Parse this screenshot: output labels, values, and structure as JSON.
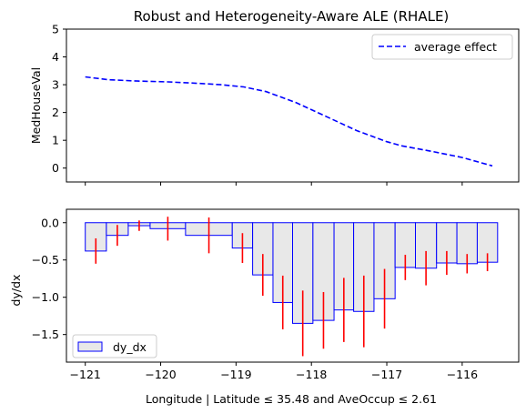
{
  "chart_data": [
    {
      "type": "line",
      "title": "Robust and Heterogeneity-Aware ALE (RHALE)",
      "xlabel": "",
      "ylabel": "MedHouseVal",
      "xlim": [
        -121.25,
        -115.25
      ],
      "ylim": [
        -0.5,
        5.0
      ],
      "yticks": [
        0,
        1,
        2,
        3,
        4,
        5
      ],
      "grid": false,
      "legend_position": "top-right",
      "series": [
        {
          "name": "average effect",
          "color": "#0000ff",
          "linestyle": "dashed",
          "x": [
            -121.0,
            -120.7,
            -120.3,
            -119.9,
            -119.5,
            -119.2,
            -118.9,
            -118.6,
            -118.2,
            -117.8,
            -117.4,
            -117.0,
            -116.8,
            -116.4,
            -116.0,
            -115.6
          ],
          "y": [
            3.28,
            3.18,
            3.13,
            3.1,
            3.05,
            3.0,
            2.92,
            2.75,
            2.35,
            1.85,
            1.35,
            0.95,
            0.8,
            0.6,
            0.38,
            0.08
          ]
        }
      ]
    },
    {
      "type": "bar",
      "xlabel": "Longitude | Latitude ≤ 35.48 and AveOccup ≤ 2.61",
      "ylabel": "dy/dx",
      "xlim": [
        -121.25,
        -115.25
      ],
      "ylim": [
        -1.87,
        0.18
      ],
      "xticks": [
        -121,
        -120,
        -119,
        -118,
        -117,
        -116
      ],
      "xtick_labels": [
        "−121",
        "−120",
        "−119",
        "−118",
        "−117",
        "−116"
      ],
      "yticks": [
        0.0,
        -0.5,
        -1.0,
        -1.5
      ],
      "ytick_labels": [
        "0.0",
        "−0.5",
        "−1.0",
        "−1.5"
      ],
      "grid": false,
      "legend_position": "bottom-left",
      "bar_fill": "#e8e8e8",
      "bar_edge": "#0000ff",
      "errorbar_color": "#ff0000",
      "series": [
        {
          "name": "dy_dx",
          "bins": [
            {
              "x0": -121.0,
              "x1": -120.72,
              "value": -0.38,
              "err": 0.17
            },
            {
              "x0": -120.72,
              "x1": -120.43,
              "value": -0.17,
              "err": 0.14
            },
            {
              "x0": -120.43,
              "x1": -120.14,
              "value": -0.04,
              "err": 0.07
            },
            {
              "x0": -120.14,
              "x1": -119.67,
              "value": -0.08,
              "err": 0.16
            },
            {
              "x0": -119.67,
              "x1": -119.05,
              "value": -0.17,
              "err": 0.24
            },
            {
              "x0": -119.05,
              "x1": -118.78,
              "value": -0.34,
              "err": 0.2
            },
            {
              "x0": -118.78,
              "x1": -118.51,
              "value": -0.7,
              "err": 0.28
            },
            {
              "x0": -118.51,
              "x1": -118.25,
              "value": -1.07,
              "err": 0.36
            },
            {
              "x0": -118.25,
              "x1": -117.98,
              "value": -1.35,
              "err": 0.44
            },
            {
              "x0": -117.98,
              "x1": -117.7,
              "value": -1.31,
              "err": 0.38
            },
            {
              "x0": -117.7,
              "x1": -117.44,
              "value": -1.17,
              "err": 0.43
            },
            {
              "x0": -117.44,
              "x1": -117.17,
              "value": -1.19,
              "err": 0.48
            },
            {
              "x0": -117.17,
              "x1": -116.89,
              "value": -1.02,
              "err": 0.4
            },
            {
              "x0": -116.89,
              "x1": -116.62,
              "value": -0.6,
              "err": 0.17
            },
            {
              "x0": -116.62,
              "x1": -116.34,
              "value": -0.61,
              "err": 0.23
            },
            {
              "x0": -116.34,
              "x1": -116.07,
              "value": -0.54,
              "err": 0.16
            },
            {
              "x0": -116.07,
              "x1": -115.8,
              "value": -0.55,
              "err": 0.13
            },
            {
              "x0": -115.8,
              "x1": -115.53,
              "value": -0.53,
              "err": 0.12
            }
          ]
        }
      ]
    }
  ]
}
